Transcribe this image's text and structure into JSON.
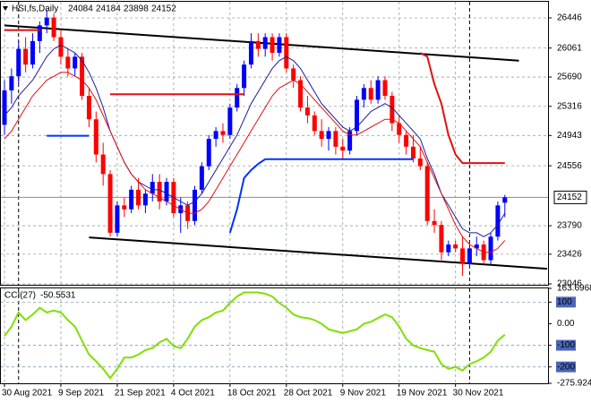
{
  "chart_data": [
    {
      "type": "candlestick",
      "title": "HSI,fs,Daily",
      "categories": [
        "30 Aug 2021",
        null,
        null,
        null,
        null,
        null,
        null,
        null,
        "9 Sep 2021",
        null,
        null,
        null,
        null,
        null,
        null,
        null,
        "21 Sep 2021",
        null,
        null,
        null,
        null,
        null,
        null,
        null,
        "4 Oct 2021",
        null,
        null,
        null,
        null,
        null,
        null,
        null,
        "18 Oct 2021",
        null,
        null,
        null,
        null,
        null,
        null,
        null,
        "28 Oct 2021",
        null,
        null,
        null,
        null,
        null,
        null,
        null,
        "9 Nov 2021",
        null,
        null,
        null,
        null,
        null,
        null,
        null,
        "19 Nov 2021",
        null,
        null,
        null,
        null,
        null,
        null,
        null,
        "30 Nov 2021",
        null,
        null,
        null,
        null,
        null,
        null,
        null
      ],
      "open": [
        25080,
        25520,
        25700,
        26050,
        25850,
        26150,
        26350,
        26450,
        26200,
        25950,
        25800,
        25950,
        25450,
        25150,
        24700,
        24450,
        23700,
        24050,
        24000,
        24250,
        24050,
        24200,
        24350,
        24100,
        24350,
        23950,
        24050,
        23850,
        24250,
        24550,
        24900,
        25000,
        24950,
        25300,
        25550,
        25850,
        26150,
        26050,
        26200,
        26000,
        26200,
        25800,
        25650,
        25300,
        25200,
        25000,
        24900,
        25000,
        24800,
        24750,
        25000,
        25400,
        25550,
        25400,
        25650,
        25450,
        25100,
        24950,
        24800,
        24650,
        24550,
        23850,
        23800,
        23450,
        23550,
        23500,
        23300,
        23500,
        23550,
        23350,
        23650,
        24084
      ],
      "high": [
        25650,
        25800,
        26150,
        26200,
        26250,
        26400,
        26550,
        26500,
        26300,
        26050,
        26000,
        26000,
        25550,
        25250,
        24850,
        24500,
        24100,
        24150,
        24300,
        24400,
        24250,
        24450,
        24450,
        24400,
        24400,
        24150,
        24100,
        24300,
        24600,
        24950,
        25050,
        25100,
        25350,
        25600,
        25900,
        26250,
        26250,
        26250,
        26250,
        26250,
        26250,
        25850,
        25700,
        25450,
        25250,
        25150,
        25050,
        25050,
        24900,
        25050,
        25450,
        25600,
        25650,
        25700,
        25700,
        25500,
        25200,
        25000,
        24950,
        24800,
        24600,
        24000,
        23850,
        23600,
        23600,
        23650,
        23550,
        23650,
        23600,
        23700,
        24100,
        24184
      ],
      "low": [
        24950,
        25350,
        25600,
        25750,
        25800,
        26000,
        26250,
        26150,
        25850,
        25700,
        25700,
        25400,
        25050,
        24600,
        24300,
        23650,
        23650,
        23900,
        23950,
        24000,
        23950,
        24100,
        24000,
        24050,
        23900,
        23700,
        23750,
        23800,
        24200,
        24500,
        24800,
        24850,
        24900,
        25250,
        25450,
        25800,
        25950,
        25950,
        25900,
        25950,
        25750,
        25550,
        25250,
        25100,
        24950,
        24800,
        24750,
        24700,
        24650,
        24700,
        24950,
        25300,
        25350,
        25350,
        25400,
        25000,
        24850,
        24700,
        24600,
        24500,
        23800,
        23700,
        23350,
        23400,
        23450,
        23150,
        23250,
        23400,
        23300,
        23300,
        23600,
        23898
      ],
      "close": [
        25520,
        25700,
        26050,
        25850,
        26150,
        26350,
        26450,
        26200,
        25950,
        25800,
        25950,
        25450,
        25150,
        24700,
        24450,
        23700,
        24050,
        24000,
        24250,
        24050,
        24200,
        24350,
        24100,
        24350,
        23950,
        24050,
        23850,
        24250,
        24550,
        24900,
        25000,
        24950,
        25300,
        25550,
        25850,
        26150,
        26050,
        26200,
        26000,
        26200,
        25800,
        25650,
        25300,
        25200,
        25000,
        24900,
        25000,
        24800,
        24750,
        25000,
        25400,
        25550,
        25400,
        25650,
        25450,
        25100,
        24950,
        24800,
        24650,
        24550,
        23850,
        23800,
        23450,
        23550,
        23500,
        23300,
        23500,
        23550,
        23350,
        23650,
        24050,
        24152
      ],
      "up_color": "#0000ff",
      "down_color": "#ff0000",
      "lines": [
        {
          "color": "#1a1a9e",
          "width": 1,
          "values": [
            25200,
            25300,
            25450,
            25550,
            25650,
            25800,
            25950,
            26050,
            26100,
            26050,
            26000,
            25900,
            25750,
            25550,
            25300,
            25000,
            24800,
            24600,
            24450,
            24350,
            24300,
            24250,
            24250,
            24200,
            24150,
            24100,
            24050,
            24100,
            24200,
            24350,
            24500,
            24650,
            24800,
            24950,
            25150,
            25350,
            25500,
            25650,
            25800,
            25900,
            25950,
            25900,
            25800,
            25650,
            25500,
            25350,
            25250,
            25150,
            25050,
            25000,
            25050,
            25150,
            25250,
            25300,
            25350,
            25300,
            25200,
            25100,
            25000,
            24900,
            24650,
            24450,
            24200,
            24050,
            23900,
            23750,
            23700,
            23700,
            23650,
            23700,
            23800,
            23950
          ]
        },
        {
          "color": "#e01010",
          "width": 1,
          "values": [
            24900,
            25000,
            25150,
            25300,
            25450,
            25550,
            25650,
            25700,
            25750,
            25750,
            25700,
            25650,
            25550,
            25400,
            25200,
            25000,
            24800,
            24600,
            24450,
            24350,
            24250,
            24200,
            24150,
            24100,
            24050,
            24000,
            23950,
            23950,
            24000,
            24100,
            24250,
            24400,
            24550,
            24700,
            24850,
            25000,
            25150,
            25300,
            25450,
            25550,
            25600,
            25650,
            25600,
            25500,
            25400,
            25300,
            25200,
            25100,
            25000,
            24950,
            24950,
            25000,
            25050,
            25100,
            25150,
            25150,
            25100,
            25000,
            24900,
            24800,
            24600,
            24400,
            24200,
            24000,
            23800,
            23650,
            23550,
            23500,
            23450,
            23450,
            23500,
            23600
          ]
        },
        {
          "color": "#e01010",
          "width": 2,
          "values": [
            26290,
            26290,
            26290,
            26290,
            26290,
            26290,
            null,
            null,
            null,
            null,
            null,
            null,
            null,
            null,
            null,
            25470,
            25470,
            25470,
            25470,
            25470,
            25470,
            25470,
            25470,
            25470,
            25470,
            25470,
            25470,
            25470,
            25470,
            25470,
            25470,
            25470,
            25470,
            25470,
            25470,
            null,
            null,
            null,
            null,
            null,
            null,
            null,
            null,
            null,
            null,
            null,
            null,
            null,
            null,
            null,
            null,
            null,
            null,
            null,
            null,
            null,
            null,
            null,
            null,
            26000,
            25950,
            25600,
            25350,
            24950,
            24700,
            24590,
            24590,
            24590,
            24590,
            24590,
            24590,
            24590
          ]
        },
        {
          "color": "#0033ff",
          "width": 2,
          "values": [
            null,
            null,
            null,
            null,
            null,
            null,
            24940,
            24940,
            24940,
            24940,
            24940,
            24940,
            24940,
            null,
            null,
            null,
            null,
            null,
            null,
            null,
            null,
            null,
            null,
            null,
            null,
            null,
            null,
            null,
            null,
            null,
            null,
            null,
            23700,
            24000,
            24400,
            24500,
            24580,
            24640,
            24640,
            24640,
            24640,
            24640,
            24640,
            24640,
            24640,
            24640,
            24640,
            24640,
            24640,
            24640,
            24640,
            24640,
            24640,
            24640,
            24640,
            24640,
            24640,
            24640,
            24640,
            null,
            null,
            null,
            null,
            null,
            null,
            null,
            null,
            null,
            null,
            null,
            null,
            null
          ]
        }
      ],
      "trendlines": [
        {
          "color": "#000000",
          "x": [
            0,
            73
          ],
          "values": [
            26350,
            25900
          ]
        },
        {
          "color": "#000000",
          "x": [
            12,
            77
          ],
          "values": [
            23640,
            23240
          ]
        }
      ],
      "separators": [
        2,
        66
      ],
      "ylim": [
        23035,
        26652
      ],
      "yticks": [
        26446,
        26061,
        25690,
        25316,
        24943,
        24556,
        23790,
        23426,
        23046
      ],
      "grid": true
    },
    {
      "type": "line",
      "title": "CCI(27)",
      "color": "#7fe000",
      "values": [
        -57,
        -13,
        52,
        17,
        43,
        74,
        52,
        61,
        52,
        17,
        -13,
        -78,
        -143,
        -174,
        -209,
        -252,
        -209,
        -157,
        -157,
        -143,
        -122,
        -113,
        -87,
        -70,
        -104,
        -113,
        -70,
        -13,
        17,
        30,
        52,
        61,
        96,
        126,
        145,
        145,
        145,
        139,
        126,
        96,
        74,
        43,
        30,
        26,
        17,
        0,
        -26,
        -35,
        -43,
        -35,
        -26,
        0,
        9,
        26,
        43,
        30,
        -13,
        -70,
        -100,
        -113,
        -122,
        -130,
        -187,
        -209,
        -200,
        -217,
        -187,
        -174,
        -157,
        -130,
        -78,
        -50.5531
      ],
      "ylim": [
        -275.924,
        163.6968
      ],
      "yticks": [
        163.6968,
        100,
        {
          "value": 0,
          "label": "0.00"
        },
        -100,
        -200,
        -275.924
      ],
      "levels": [
        100,
        -100,
        -200
      ]
    }
  ]
}
